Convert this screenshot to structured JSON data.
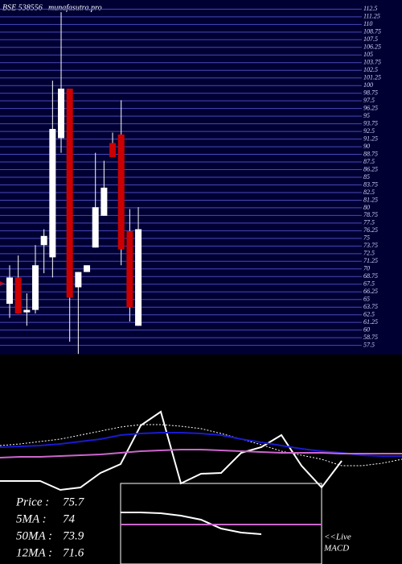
{
  "chart_data": [
    {
      "type": "candlestick",
      "title": "BSE 538556",
      "subtitle": "munafasutra.pro",
      "open": [
        64.3,
        68.6,
        62.9,
        63.3,
        73.9,
        71.9,
        91.4,
        99.5,
        67.0,
        69.5,
        73.5,
        78.7,
        90.6,
        92.0,
        76.2,
        60.7
      ],
      "high": [
        70.6,
        72.2,
        66.0,
        73.9,
        76.5,
        100.8,
        112.0,
        99.5,
        69.5,
        70.6,
        89.0,
        87.7,
        92.3,
        97.6,
        79.8,
        80.1
      ],
      "low": [
        62.0,
        62.7,
        60.7,
        62.7,
        69.3,
        68.6,
        89.0,
        58.1,
        56.1,
        69.5,
        73.5,
        78.7,
        88.3,
        70.6,
        61.4,
        60.7
      ],
      "close": [
        68.6,
        62.7,
        63.3,
        70.6,
        75.4,
        92.9,
        99.5,
        65.3,
        69.5,
        70.6,
        80.1,
        83.3,
        88.3,
        73.2,
        63.7,
        76.5
      ],
      "up_color": "#ffffff",
      "down_color": "#cc0000",
      "ylim": [
        56,
        114
      ],
      "yticks": [
        57.5,
        58.75,
        60,
        61.25,
        62.5,
        63.75,
        65,
        66.25,
        67.5,
        68.75,
        70,
        71.25,
        72.5,
        73.75,
        75,
        76.25,
        77.5,
        78.75,
        80,
        81.25,
        82.5,
        83.75,
        85,
        86.25,
        87.5,
        88.75,
        90,
        91.25,
        92.5,
        93.75,
        95,
        96.25,
        97.5,
        98.75,
        100,
        101.25,
        102.5,
        103.75,
        105,
        106.25,
        107.5,
        108.75,
        110,
        111.25,
        112.5
      ],
      "grid": true
    },
    {
      "type": "line",
      "xlim": [
        0,
        20
      ],
      "ylim": [
        0,
        100
      ],
      "series": [
        {
          "color": "#ffffff",
          "values": [
            41.2,
            41.2,
            41.2,
            36.8,
            38,
            45.2,
            49.6,
            68.8,
            75.6,
            40,
            44.8,
            45.2,
            55.2,
            58,
            64,
            48.8,
            38,
            51.2,
            null,
            null,
            null
          ]
        },
        {
          "color": "#ffffff",
          "dash": true,
          "values": [
            58.8,
            59.6,
            60.8,
            62,
            64,
            66,
            68,
            69.2,
            69.2,
            68.4,
            67.2,
            64.8,
            62,
            59.2,
            56,
            54,
            52,
            48.8,
            48.8,
            50,
            52
          ]
        },
        {
          "color": "#1a1ad0",
          "values": [
            58,
            58.4,
            58.8,
            59.6,
            60.8,
            62,
            64,
            64.8,
            65.2,
            65.2,
            64.8,
            64,
            62,
            60.4,
            58.8,
            57.2,
            56,
            55.2,
            54,
            53.6,
            53.6
          ]
        },
        {
          "color": "#cc66cc",
          "values": [
            52.8,
            53.2,
            53.2,
            53.6,
            54,
            54.4,
            55.2,
            56,
            56.4,
            56.8,
            56.8,
            56.4,
            56,
            55.6,
            55.2,
            55.2,
            55.2,
            54.8,
            54.8,
            54.8,
            54.8
          ]
        },
        {
          "color": "#ffffff",
          "values": [
            null,
            null,
            null,
            null,
            null,
            null,
            25.6,
            25.6,
            25.2,
            24,
            22,
            17.6,
            15.6,
            14.8,
            null,
            null,
            null,
            null,
            null,
            null,
            null
          ]
        },
        {
          "color": "#cc66cc",
          "values": [
            null,
            null,
            null,
            null,
            null,
            null,
            19.6,
            19.6,
            19.6,
            19.6,
            19.6,
            19.6,
            19.6,
            19.6,
            19.6,
            19.6,
            19.6,
            null,
            null,
            null,
            null
          ]
        }
      ],
      "legend": [
        {
          "label": "Price  :",
          "value": 75.7
        },
        {
          "label": "5MA :",
          "value": 74
        },
        {
          "label": "50MA :",
          "value": 73.9
        },
        {
          "label": "12MA :",
          "value": 71.6
        }
      ],
      "annotations": [
        "<<Live",
        "MACD"
      ]
    }
  ]
}
